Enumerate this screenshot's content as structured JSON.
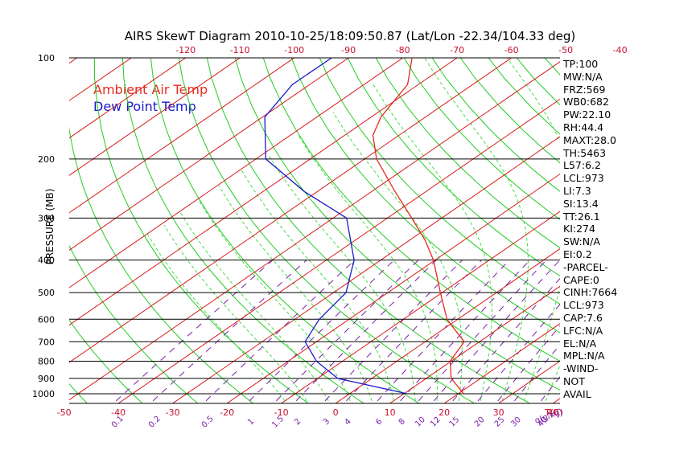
{
  "title": "AIRS SkewT Diagram 2010-10-25/18:09:50.87 (Lat/Lon -22.34/104.33 deg)",
  "legend": [
    {
      "label": "Ambient Air Temp",
      "color": "#e8291f"
    },
    {
      "label": "Dew Point Temp",
      "color": "#1a1acc"
    }
  ],
  "colors": {
    "isotherm": "#d91a1a",
    "dry_adiabat": "#22cc22",
    "moist_adiabat": "#44dd44",
    "mixing_ratio": "#7a1fa8",
    "isobar": "#000000",
    "axis_text": "#c8102e"
  },
  "stats": [
    "TP:100",
    "MW:N/A",
    "FRZ:569",
    "WB0:682",
    "PW:22.10",
    "RH:44.4",
    "MAXT:28.0",
    "TH:5463",
    "L57:6.2",
    "LCL:973",
    "LI:7.3",
    "SI:13.4",
    "TT:26.1",
    "KI:274",
    "SW:N/A",
    "EI:0.2",
    "-PARCEL-",
    "CAPE:0",
    "CINH:7664",
    "LCL:973",
    "CAP:7.6",
    "LFC:N/A",
    "EL:N/A",
    "MPL:N/A",
    "-WIND-",
    "NOT",
    "AVAIL"
  ],
  "chart_data": {
    "type": "line",
    "title": "AIRS SkewT Diagram 2010-10-25/18:09:50.87 (Lat/Lon -22.34/104.33 deg)",
    "ylabel": "PRESSURE (MB)",
    "xlabel": "T(C)",
    "y_scale": "log",
    "ylim": [
      1050,
      100
    ],
    "pressure_ticks": [
      100,
      200,
      300,
      400,
      500,
      600,
      700,
      800,
      900,
      1000
    ],
    "bottom_temp_ticks": [
      -50,
      -40,
      -30,
      -20,
      -10,
      0,
      10,
      20,
      30,
      40
    ],
    "top_temp_ticks": [
      -120,
      -110,
      -100,
      -90,
      -80,
      -70,
      -60,
      -50,
      -40
    ],
    "mixing_ratio_ticks": [
      "0.1",
      "0.2",
      "0.5",
      "1",
      "1.5",
      "2",
      "3",
      "4",
      "6",
      "8",
      "10",
      "12",
      "15",
      "20",
      "25",
      "30",
      "40"
    ],
    "mixing_ratio_values": [
      0.1,
      0.2,
      0.5,
      1,
      1.5,
      2,
      3,
      4,
      6,
      8,
      10,
      12,
      15,
      20,
      25,
      30,
      40
    ],
    "mixing_ratio_unit": "q(g/kg)",
    "temp_unit": "T(C)",
    "series": [
      {
        "name": "Ambient Air Temp",
        "points": [
          {
            "p": 100,
            "t": -78.3
          },
          {
            "p": 120,
            "t": -72.0
          },
          {
            "p": 150,
            "t": -68.2
          },
          {
            "p": 170,
            "t": -64.8
          },
          {
            "p": 200,
            "t": -57.8
          },
          {
            "p": 250,
            "t": -45.7
          },
          {
            "p": 300,
            "t": -35.5
          },
          {
            "p": 350,
            "t": -27.0
          },
          {
            "p": 400,
            "t": -20.3
          },
          {
            "p": 500,
            "t": -10.3
          },
          {
            "p": 600,
            "t": -2.0
          },
          {
            "p": 700,
            "t": 7.2
          },
          {
            "p": 800,
            "t": 9.8
          },
          {
            "p": 900,
            "t": 14.6
          },
          {
            "p": 1000,
            "t": 21.0
          }
        ]
      },
      {
        "name": "Dew Point Temp",
        "points": [
          {
            "p": 100,
            "t": -93.1
          },
          {
            "p": 120,
            "t": -93.2
          },
          {
            "p": 150,
            "t": -89.6
          },
          {
            "p": 200,
            "t": -78.2
          },
          {
            "p": 250,
            "t": -62.4
          },
          {
            "p": 300,
            "t": -47.5
          },
          {
            "p": 400,
            "t": -34.9
          },
          {
            "p": 500,
            "t": -27.7
          },
          {
            "p": 600,
            "t": -25.5
          },
          {
            "p": 700,
            "t": -22.1
          },
          {
            "p": 800,
            "t": -14.8
          },
          {
            "p": 900,
            "t": -6.3
          },
          {
            "p": 1000,
            "t": 10.6
          }
        ]
      }
    ]
  }
}
